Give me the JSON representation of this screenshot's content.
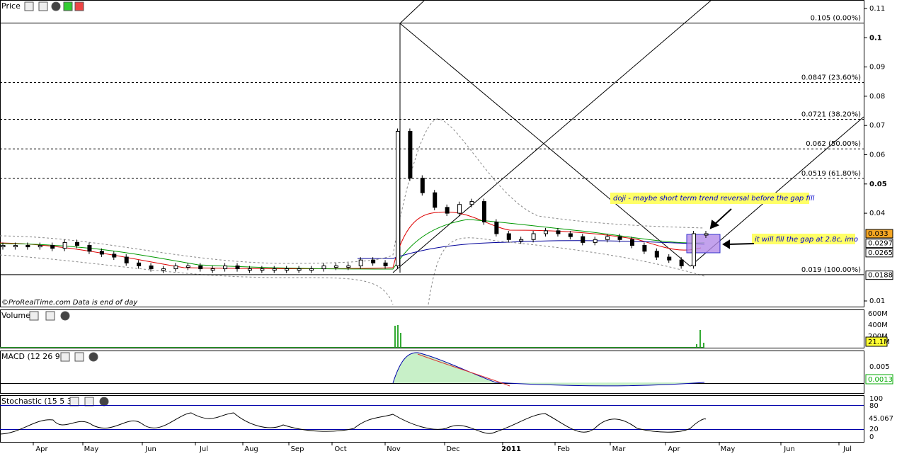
{
  "price_panel": {
    "title": "Price",
    "yticks": [
      0.11,
      0.1,
      0.09,
      0.08,
      0.07,
      0.06,
      0.05,
      0.04,
      0.01
    ],
    "closes": [
      0.029,
      0.029,
      0.0285,
      0.029,
      0.028,
      0.03,
      0.029,
      0.027,
      0.026,
      0.025,
      0.023,
      0.022,
      0.021,
      0.021,
      0.022,
      0.022,
      0.021,
      0.021,
      0.022,
      0.021,
      0.021,
      0.021,
      0.021,
      0.021,
      0.021,
      0.021,
      0.022,
      0.022,
      0.022,
      0.024,
      0.023,
      0.022,
      0.068,
      0.052,
      0.047,
      0.042,
      0.04,
      0.043,
      0.044,
      0.037,
      0.033,
      0.031,
      0.031,
      0.033,
      0.034,
      0.033,
      0.032,
      0.03,
      0.031,
      0.032,
      0.031,
      0.029,
      0.027,
      0.025,
      0.024,
      0.022,
      0.033,
      0.033
    ],
    "fib_levels": [
      {
        "value": 0.105,
        "label": "0.105 (0.00%)"
      },
      {
        "value": 0.0847,
        "label": "0.0847 (23.60%)"
      },
      {
        "value": 0.0721,
        "label": "0.0721 (38.20%)"
      },
      {
        "value": 0.062,
        "label": "0.062 (50.00%)"
      },
      {
        "value": 0.0519,
        "label": "0.0519 (61.80%)"
      },
      {
        "value": 0.019,
        "label": "0.019 (100.00%)"
      }
    ],
    "badges": [
      {
        "value": 0.033,
        "label": "0.033",
        "color": "#f5a623"
      },
      {
        "value": 0.0297,
        "label": "0.0297",
        "color": "#ffffff"
      },
      {
        "value": 0.0265,
        "label": "0.0265",
        "color": "#ffffff"
      },
      {
        "value": 0.0188,
        "label": "0.0188",
        "color": "#ffffff"
      }
    ],
    "credit": "©ProRealTime.com  Data is end of day"
  },
  "annotations": [
    "doji - maybe short term trend reversal before the gap fill",
    "it will fill the gap at 2.8c, imo"
  ],
  "volume_panel": {
    "title": "Volume",
    "ticks": [
      "600M",
      "400M",
      "200M"
    ],
    "badge": "21.1M"
  },
  "macd_panel": {
    "title": "MACD (12 26 9)",
    "tick": "0.005",
    "badge": "0.0013"
  },
  "stochastic_panel": {
    "title": "Stochastic (15 5 3)",
    "ticks": [
      "100",
      "80",
      "20",
      "0"
    ],
    "badge": "45.067"
  },
  "months": [
    "Apr",
    "May",
    "Jun",
    "Jul",
    "Aug",
    "Sep",
    "Oct",
    "Nov",
    "Dec",
    "2011",
    "Feb",
    "Mar",
    "Apr",
    "May",
    "Jun",
    "Jul"
  ]
}
